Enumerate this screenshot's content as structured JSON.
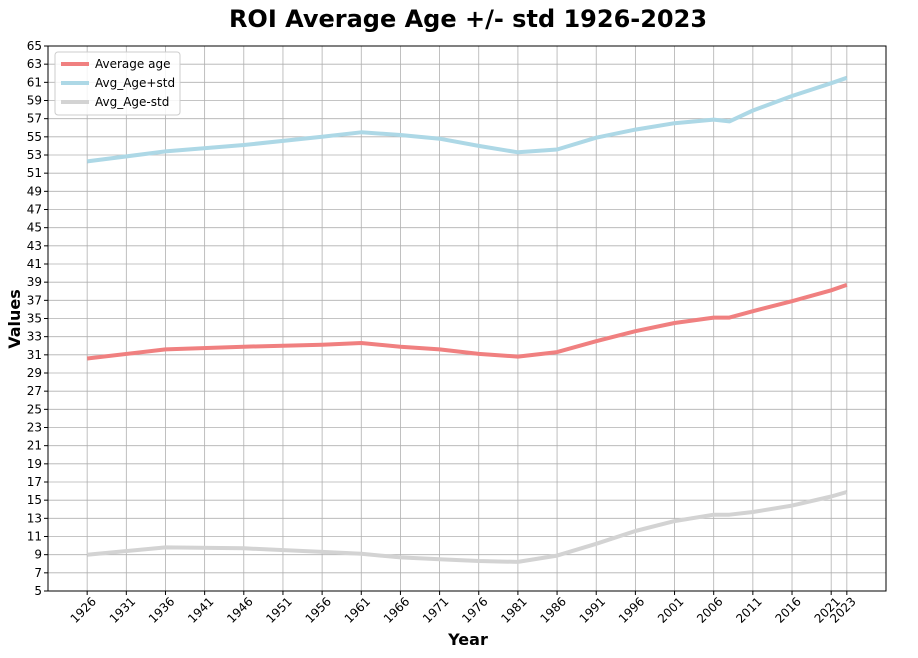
{
  "chart_data": {
    "type": "line",
    "title": "ROI Average Age +/- std 1926-2023",
    "xlabel": "Year",
    "ylabel": "Values",
    "xticks": [
      1926,
      1931,
      1936,
      1941,
      1946,
      1951,
      1956,
      1961,
      1966,
      1971,
      1976,
      1981,
      1986,
      1991,
      1996,
      2001,
      2006,
      2011,
      2016,
      2021,
      2023
    ],
    "yticks": [
      5,
      7,
      9,
      11,
      13,
      15,
      17,
      19,
      21,
      23,
      25,
      27,
      29,
      31,
      33,
      35,
      37,
      39,
      41,
      43,
      45,
      47,
      49,
      51,
      53,
      55,
      57,
      59,
      61,
      63,
      65
    ],
    "xlim": [
      1921,
      2028
    ],
    "ylim": [
      5,
      65
    ],
    "grid": true,
    "legend_position": "top-left",
    "series": [
      {
        "name": "Average age",
        "color": "#f08080",
        "x": [
          1926,
          1936,
          1946,
          1956,
          1961,
          1966,
          1971,
          1976,
          1981,
          1986,
          1991,
          1996,
          2001,
          2006,
          2008,
          2011,
          2016,
          2021,
          2023
        ],
        "y": [
          30.6,
          31.6,
          31.9,
          32.1,
          32.3,
          31.9,
          31.6,
          31.1,
          30.8,
          31.3,
          32.5,
          33.6,
          34.5,
          35.1,
          35.1,
          35.8,
          36.9,
          38.1,
          38.7
        ]
      },
      {
        "name": "Avg_Age+std",
        "color": "#add8e6",
        "x": [
          1926,
          1936,
          1946,
          1956,
          1961,
          1966,
          1971,
          1976,
          1981,
          1986,
          1991,
          1996,
          2001,
          2006,
          2008,
          2011,
          2016,
          2021,
          2023
        ],
        "y": [
          52.3,
          53.4,
          54.1,
          55.0,
          55.5,
          55.2,
          54.8,
          54.0,
          53.3,
          53.6,
          54.9,
          55.8,
          56.5,
          56.9,
          56.7,
          57.9,
          59.5,
          60.9,
          61.5
        ]
      },
      {
        "name": "Avg_Age-std",
        "color": "#d3d3d3",
        "x": [
          1926,
          1936,
          1946,
          1956,
          1961,
          1966,
          1971,
          1976,
          1981,
          1986,
          1991,
          1996,
          2001,
          2006,
          2008,
          2011,
          2016,
          2021,
          2023
        ],
        "y": [
          9.0,
          9.8,
          9.7,
          9.3,
          9.1,
          8.7,
          8.5,
          8.3,
          8.2,
          8.9,
          10.2,
          11.6,
          12.7,
          13.4,
          13.4,
          13.7,
          14.4,
          15.4,
          15.9
        ]
      }
    ]
  }
}
